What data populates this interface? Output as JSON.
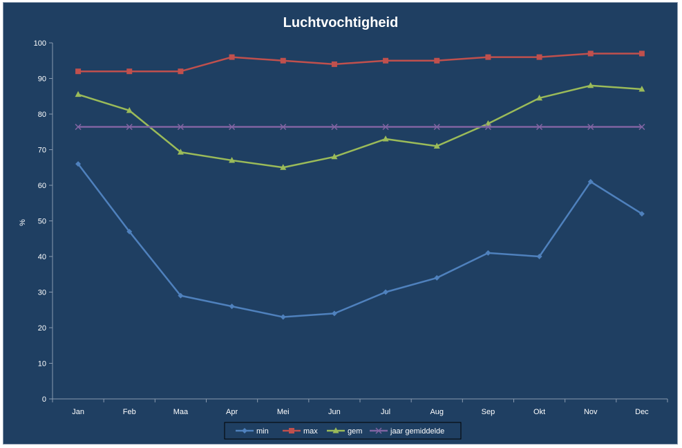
{
  "chart_data": {
    "type": "line",
    "title": "Luchtvochtigheid",
    "ylabel": "%",
    "xlabel": "",
    "categories": [
      "Jan",
      "Feb",
      "Maa",
      "Apr",
      "Mei",
      "Jun",
      "Jul",
      "Aug",
      "Sep",
      "Okt",
      "Nov",
      "Dec"
    ],
    "ylim": [
      0,
      100
    ],
    "yticks": [
      0,
      10,
      20,
      30,
      40,
      50,
      60,
      70,
      80,
      90,
      100
    ],
    "grid": false,
    "legend_position": "bottom",
    "series": [
      {
        "name": "min",
        "color": "#4f81bd",
        "marker": "diamond",
        "values": [
          66,
          47,
          29,
          26,
          23,
          24,
          30,
          34,
          41,
          40,
          61,
          52
        ]
      },
      {
        "name": "max",
        "color": "#c0504d",
        "marker": "square",
        "values": [
          92,
          92,
          92,
          96,
          95,
          94,
          95,
          95,
          96,
          96,
          97,
          97
        ]
      },
      {
        "name": "gem",
        "color": "#9bbb59",
        "marker": "triangle",
        "values": [
          85.5,
          81,
          69.3,
          67,
          65,
          68,
          73,
          71,
          77.3,
          84.5,
          88,
          87
        ]
      },
      {
        "name": "jaar gemiddelde",
        "color": "#8064a2",
        "marker": "x",
        "values": [
          76.4,
          76.4,
          76.4,
          76.4,
          76.4,
          76.4,
          76.4,
          76.4,
          76.4,
          76.4,
          76.4,
          76.4
        ]
      }
    ]
  }
}
